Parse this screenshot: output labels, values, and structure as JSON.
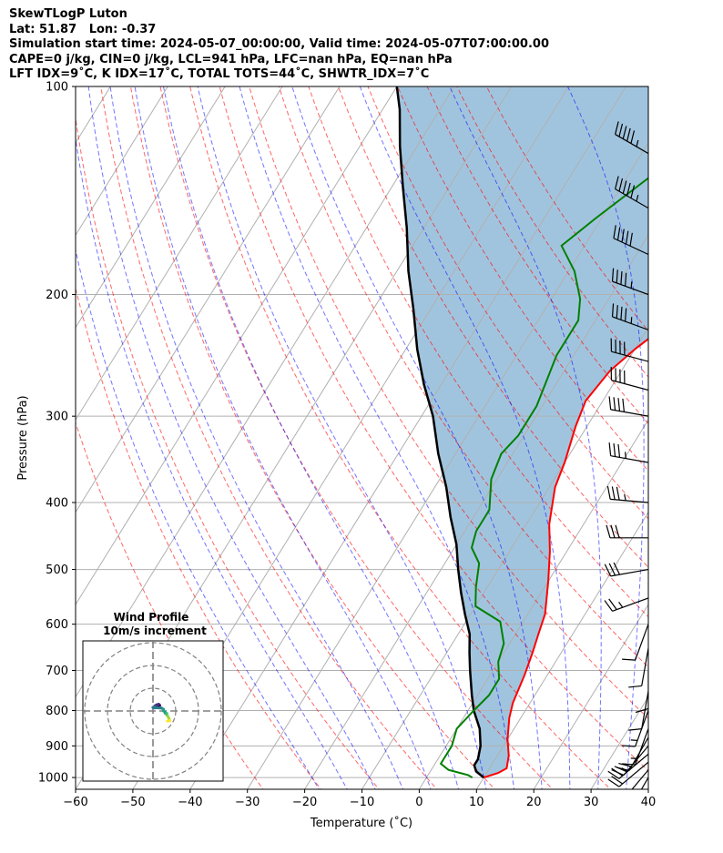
{
  "header": {
    "line1": "SkewTLogP Luton",
    "line2": "Lat: 51.87   Lon: -0.37",
    "line3": "Simulation start time: 2024-05-07_00:00:00, Valid time: 2024-05-07T07:00:00.00",
    "line4": "CAPE=0 j/kg, CIN=0 j/kg, LCL=941 hPa, LFC=nan hPa, EQ=nan hPa",
    "line5": "LFT IDX=9˚C, K IDX=17˚C, TOTAL TOTS=44˚C, SHWTR_IDX=7˚C"
  },
  "chart_data": {
    "type": "skewt",
    "xlabel": "Temperature (˚C)",
    "ylabel": "Pressure (hPa)",
    "xlim": [
      -60,
      40
    ],
    "ylim": [
      1040,
      100
    ],
    "y_scale": "log",
    "x_ticks": [
      "−60",
      "−50",
      "−40",
      "−30",
      "−20",
      "−10",
      "0",
      "10",
      "20",
      "30",
      "40"
    ],
    "y_ticks": [
      "100",
      "200",
      "300",
      "400",
      "500",
      "600",
      "700",
      "800",
      "900",
      "1000"
    ],
    "grid": true,
    "series": [
      {
        "role": "temperature",
        "color": "#ff0000",
        "points": [
          [
            10,
            1000
          ],
          [
            12,
            985
          ],
          [
            13,
            970
          ],
          [
            12,
            930
          ],
          [
            10,
            880
          ],
          [
            8,
            820
          ],
          [
            7,
            780
          ],
          [
            6,
            710
          ],
          [
            5,
            660
          ],
          [
            4,
            620
          ],
          [
            3,
            580
          ],
          [
            0,
            520
          ],
          [
            -3,
            470
          ],
          [
            -6,
            430
          ],
          [
            -9,
            380
          ],
          [
            -10,
            350
          ],
          [
            -12,
            310
          ],
          [
            -13,
            285
          ],
          [
            -12,
            258
          ],
          [
            -10,
            240
          ],
          [
            -6,
            215
          ],
          [
            -2,
            195
          ],
          [
            3,
            175
          ],
          [
            8,
            155
          ],
          [
            12,
            140
          ],
          [
            15,
            128
          ],
          [
            18,
            118
          ],
          [
            19,
            111
          ],
          [
            22,
            104
          ],
          [
            23,
            100
          ]
        ]
      },
      {
        "role": "dewpoint",
        "color": "#008000",
        "points": [
          [
            8,
            1000
          ],
          [
            7,
            992
          ],
          [
            3,
            975
          ],
          [
            1,
            955
          ],
          [
            1,
            900
          ],
          [
            0,
            850
          ],
          [
            1,
            800
          ],
          [
            2,
            760
          ],
          [
            2,
            720
          ],
          [
            0,
            680
          ],
          [
            -1,
            640
          ],
          [
            -4,
            595
          ],
          [
            -10,
            565
          ],
          [
            -12,
            530
          ],
          [
            -14,
            490
          ],
          [
            -17,
            465
          ],
          [
            -18,
            440
          ],
          [
            -18,
            410
          ],
          [
            -21,
            370
          ],
          [
            -22,
            340
          ],
          [
            -21,
            320
          ],
          [
            -21,
            290
          ],
          [
            -23,
            245
          ],
          [
            -23,
            218
          ],
          [
            -25,
            203
          ],
          [
            -29,
            185
          ],
          [
            -34,
            170
          ],
          [
            -31,
            155
          ],
          [
            -26,
            135
          ],
          [
            -21,
            120
          ],
          [
            -17,
            108
          ],
          [
            -16,
            100
          ]
        ]
      },
      {
        "role": "parcel",
        "color": "#000000",
        "points": [
          [
            10,
            1000
          ],
          [
            8,
            980
          ],
          [
            7,
            960
          ],
          [
            7,
            941
          ],
          [
            6,
            900
          ],
          [
            4,
            850
          ],
          [
            1,
            800
          ],
          [
            -1,
            760
          ],
          [
            -4,
            700
          ],
          [
            -6,
            660
          ],
          [
            -8,
            620
          ],
          [
            -11,
            580
          ],
          [
            -14,
            540
          ],
          [
            -17,
            500
          ],
          [
            -20,
            460
          ],
          [
            -24,
            420
          ],
          [
            -28,
            380
          ],
          [
            -33,
            340
          ],
          [
            -38,
            300
          ],
          [
            -43,
            270
          ],
          [
            -48,
            240
          ],
          [
            -53,
            210
          ],
          [
            -58,
            185
          ],
          [
            -63,
            160
          ],
          [
            -68,
            140
          ],
          [
            -73,
            122
          ],
          [
            -77,
            108
          ],
          [
            -80,
            100
          ]
        ]
      }
    ],
    "cape_fill_color": "#a1c4de",
    "wind_barbs": {
      "pressures": [
        1000,
        975,
        950,
        925,
        900,
        875,
        850,
        800,
        750,
        700,
        650,
        600,
        550,
        500,
        450,
        400,
        350,
        300,
        275,
        250,
        225,
        200,
        175,
        150,
        125,
        100
      ],
      "speeds_kt": [
        10,
        15,
        20,
        25,
        25,
        20,
        15,
        15,
        10,
        10,
        10,
        10,
        25,
        30,
        30,
        35,
        35,
        40,
        40,
        40,
        45,
        45,
        50,
        55,
        55,
        50
      ],
      "directions_deg": [
        210,
        220,
        230,
        230,
        220,
        210,
        200,
        200,
        190,
        180,
        190,
        200,
        250,
        260,
        270,
        275,
        280,
        280,
        285,
        285,
        290,
        290,
        295,
        300,
        300,
        305
      ]
    },
    "inset": {
      "title": "Wind Profile",
      "subtitle": "10m/s increment"
    }
  }
}
